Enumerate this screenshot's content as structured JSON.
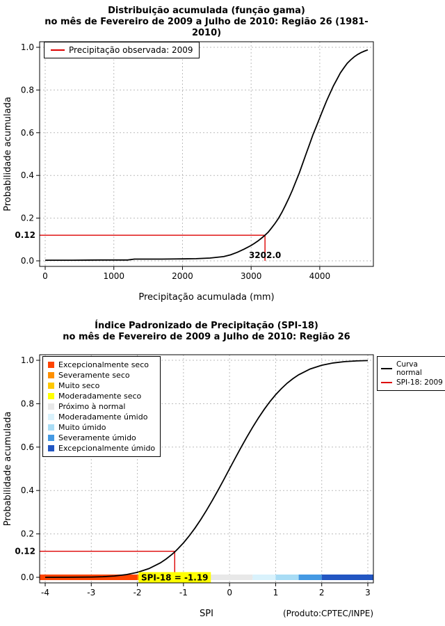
{
  "chart_data": [
    {
      "type": "line",
      "title": "Distribuição acumulada (função gama)",
      "subtitle": "no mês de Fevereiro de 2009 a Julho de 2010: Região 26 (1981-2010)",
      "xlabel": "Precipitação acumulada (mm)",
      "ylabel": "Probabilidade acumulada",
      "xlim": [
        0,
        4700
      ],
      "ylim": [
        0.0,
        1.0
      ],
      "xticks": [
        0,
        1000,
        2000,
        3000,
        4000
      ],
      "xtick_labels": [
        "0",
        "1000",
        "2000",
        "3000",
        "4000"
      ],
      "yticks": [
        0.0,
        0.2,
        0.4,
        0.6,
        0.8,
        1.0
      ],
      "ytick_labels": [
        "0.0",
        "0.2",
        "0.4",
        "0.6",
        "0.8",
        "1.0"
      ],
      "grid": true,
      "curve_color": "#000000",
      "annotation_color": "#dd0000",
      "legend": [
        {
          "label": "Precipitação observada: 2009",
          "color": "#dd0000",
          "type": "line"
        }
      ],
      "annotation": {
        "x": 3202.0,
        "y": 0.12,
        "x_label": "3202.0",
        "y_label": "0.12"
      },
      "series": [
        {
          "name": "Distribuição acumulada (função gama)",
          "color": "#000000",
          "points": [
            [
              0,
              0.003
            ],
            [
              400,
              0.003
            ],
            [
              800,
              0.004
            ],
            [
              1200,
              0.004
            ],
            [
              1300,
              0.008
            ],
            [
              1700,
              0.008
            ],
            [
              2000,
              0.009
            ],
            [
              2200,
              0.01
            ],
            [
              2400,
              0.013
            ],
            [
              2600,
              0.02
            ],
            [
              2700,
              0.028
            ],
            [
              2800,
              0.04
            ],
            [
              2900,
              0.055
            ],
            [
              3000,
              0.072
            ],
            [
              3050,
              0.082
            ],
            [
              3100,
              0.093
            ],
            [
              3150,
              0.106
            ],
            [
              3202,
              0.12
            ],
            [
              3250,
              0.135
            ],
            [
              3300,
              0.155
            ],
            [
              3350,
              0.176
            ],
            [
              3400,
              0.2
            ],
            [
              3450,
              0.228
            ],
            [
              3500,
              0.26
            ],
            [
              3550,
              0.294
            ],
            [
              3600,
              0.33
            ],
            [
              3650,
              0.37
            ],
            [
              3700,
              0.41
            ],
            [
              3750,
              0.455
            ],
            [
              3800,
              0.5
            ],
            [
              3850,
              0.545
            ],
            [
              3900,
              0.59
            ],
            [
              3950,
              0.63
            ],
            [
              4000,
              0.67
            ],
            [
              4050,
              0.71
            ],
            [
              4100,
              0.75
            ],
            [
              4150,
              0.785
            ],
            [
              4200,
              0.82
            ],
            [
              4250,
              0.85
            ],
            [
              4300,
              0.88
            ],
            [
              4350,
              0.903
            ],
            [
              4400,
              0.925
            ],
            [
              4450,
              0.941
            ],
            [
              4500,
              0.955
            ],
            [
              4550,
              0.966
            ],
            [
              4600,
              0.975
            ],
            [
              4650,
              0.982
            ],
            [
              4700,
              0.988
            ]
          ]
        }
      ]
    },
    {
      "type": "line",
      "title": "Índice Padronizado de Precipitação (SPI-18)",
      "subtitle": "no mês de Fevereiro de 2009 a Julho de 2010: Região 26",
      "xlabel": "SPI",
      "ylabel": "Probabilidade acumulada",
      "footer": "(Produto:CPTEC/INPE)",
      "xlim": [
        -4,
        3
      ],
      "ylim": [
        0.0,
        1.0
      ],
      "xticks": [
        -4,
        -3,
        -2,
        -1,
        0,
        1,
        2,
        3
      ],
      "xtick_labels": [
        "-4",
        "-3",
        "-2",
        "-1",
        "0",
        "1",
        "2",
        "3"
      ],
      "yticks": [
        0.0,
        0.2,
        0.4,
        0.6,
        0.8,
        1.0
      ],
      "ytick_labels": [
        "0.0",
        "0.2",
        "0.4",
        "0.6",
        "0.8",
        "1.0"
      ],
      "grid": true,
      "curve_color": "#000000",
      "annotation_color": "#dd0000",
      "legend_right": [
        {
          "label": "Curva normal",
          "label_lines": [
            "Curva",
            "normal"
          ],
          "color": "#000000",
          "type": "line"
        },
        {
          "label": "SPI-18: 2009",
          "label_lines": [
            "SPI-18: 2009"
          ],
          "color": "#dd0000",
          "type": "line"
        }
      ],
      "categories": [
        {
          "label": "Excepcionalmente seco",
          "color": "#ff4400",
          "range": [
            -4.0,
            -2.0
          ]
        },
        {
          "label": "Severamente seco",
          "color": "#ff9000",
          "range": [
            -2.0,
            -1.5
          ]
        },
        {
          "label": "Muito seco",
          "color": "#ffc800",
          "range": [
            -1.5,
            -1.0
          ]
        },
        {
          "label": "Moderadamente seco",
          "color": "#ffff00",
          "range": [
            -1.0,
            -0.5
          ]
        },
        {
          "label": "Próximo à normal",
          "color": "#e8e8e8",
          "range": [
            -0.5,
            0.5
          ]
        },
        {
          "label": "Moderadamente úmido",
          "color": "#d9f2fc",
          "range": [
            0.5,
            1.0
          ]
        },
        {
          "label": "Muito úmido",
          "color": "#a8dcf5",
          "range": [
            1.0,
            1.5
          ]
        },
        {
          "label": "Severamente úmido",
          "color": "#4499e3",
          "range": [
            1.5,
            2.0
          ]
        },
        {
          "label": "Excepcionalmente úmido",
          "color": "#2256c2",
          "range": [
            2.0,
            3.0
          ]
        }
      ],
      "annotation": {
        "x": -1.19,
        "y": 0.12,
        "x_label": "SPI-18 = -1.19",
        "x_label_bg": "#ffff00",
        "y_label": "0.12"
      },
      "series": [
        {
          "name": "Curva normal",
          "color": "#000000",
          "points": [
            [
              -4,
              0.0
            ],
            [
              -3.5,
              0.0002
            ],
            [
              -3,
              0.0013
            ],
            [
              -2.75,
              0.003
            ],
            [
              -2.5,
              0.0062
            ],
            [
              -2.25,
              0.0122
            ],
            [
              -2,
              0.0228
            ],
            [
              -1.75,
              0.0401
            ],
            [
              -1.5,
              0.0668
            ],
            [
              -1.375,
              0.0846
            ],
            [
              -1.25,
              0.1056
            ],
            [
              -1.19,
              0.117
            ],
            [
              -1.125,
              0.1303
            ],
            [
              -1,
              0.1587
            ],
            [
              -0.875,
              0.1908
            ],
            [
              -0.75,
              0.2266
            ],
            [
              -0.625,
              0.266
            ],
            [
              -0.5,
              0.3085
            ],
            [
              -0.375,
              0.3538
            ],
            [
              -0.25,
              0.4013
            ],
            [
              -0.125,
              0.4503
            ],
            [
              0,
              0.5
            ],
            [
              0.125,
              0.5497
            ],
            [
              0.25,
              0.5987
            ],
            [
              0.375,
              0.6462
            ],
            [
              0.5,
              0.6915
            ],
            [
              0.625,
              0.734
            ],
            [
              0.75,
              0.7734
            ],
            [
              0.875,
              0.8092
            ],
            [
              1,
              0.8413
            ],
            [
              1.125,
              0.8697
            ],
            [
              1.25,
              0.8944
            ],
            [
              1.375,
              0.9155
            ],
            [
              1.5,
              0.9332
            ],
            [
              1.75,
              0.9599
            ],
            [
              2,
              0.9772
            ],
            [
              2.25,
              0.9878
            ],
            [
              2.5,
              0.9938
            ],
            [
              2.75,
              0.997
            ],
            [
              3,
              0.9987
            ]
          ]
        }
      ]
    }
  ]
}
